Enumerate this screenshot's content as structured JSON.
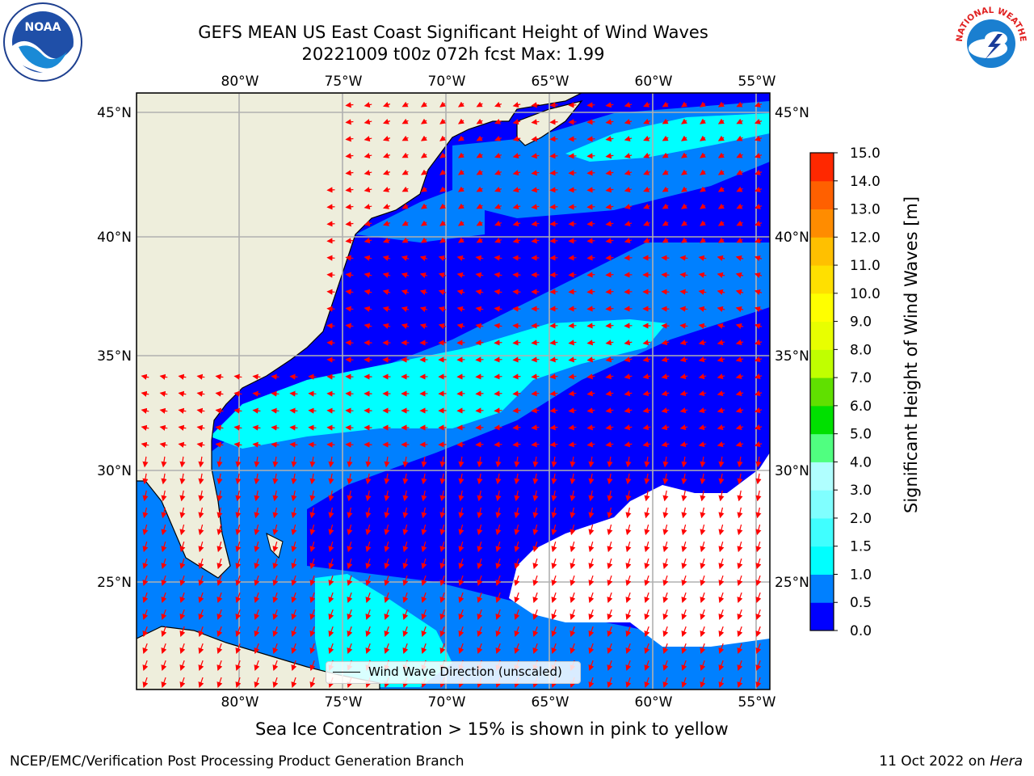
{
  "title": {
    "line1": "GEFS MEAN US East Coast Significant Height of Wind Waves",
    "line2": "20221009 t00z 072h fcst   Max: 1.99"
  },
  "map": {
    "lon_labels": [
      "80°W",
      "75°W",
      "70°W",
      "65°W",
      "60°W",
      "55°W"
    ],
    "lat_labels": [
      "45°N",
      "40°N",
      "35°N",
      "30°N",
      "25°N"
    ],
    "lon_values": [
      -80,
      -75,
      -70,
      -65,
      -60,
      -55
    ],
    "lat_values": [
      45,
      40,
      35,
      30,
      25
    ],
    "extent": {
      "lon_min": -85,
      "lon_max": -54.2,
      "lat_min": 20.5,
      "lat_max": 46
    },
    "colors": {
      "land": "#eeeedc",
      "coast": "#000000",
      "grid": "#b0b0b0",
      "arrow": "#ff0000"
    }
  },
  "colorbar": {
    "title": "Significant Height of Wind Waves [m]",
    "tick_labels": [
      "0.0",
      "0.5",
      "1.0",
      "1.5",
      "2.0",
      "3.0",
      "4.0",
      "5.0",
      "6.0",
      "7.0",
      "8.0",
      "9.0",
      "10.0",
      "11.0",
      "12.0",
      "13.0",
      "14.0",
      "15.0"
    ],
    "colors": [
      "#0000ff",
      "#0080ff",
      "#00ffff",
      "#40ffff",
      "#80ffff",
      "#b0ffff",
      "#50ff80",
      "#00e000",
      "#60e000",
      "#c0ff00",
      "#e8ff00",
      "#ffff00",
      "#ffe000",
      "#ffc000",
      "#ff8c00",
      "#ff6000",
      "#ff2800"
    ]
  },
  "legend": {
    "label": "Wind Wave Direction (unscaled)"
  },
  "sea_ice_note": "Sea Ice Concentration > 15% is shown in pink to yellow",
  "footer": {
    "left": "NCEP/EMC/Verification Post Processing Product Generation Branch",
    "right_date": "11 Oct 2022 on",
    "right_machine": "Hera"
  },
  "logos": {
    "noaa": "NOAA",
    "nws": "NATIONAL WEATHER SERVICE"
  }
}
